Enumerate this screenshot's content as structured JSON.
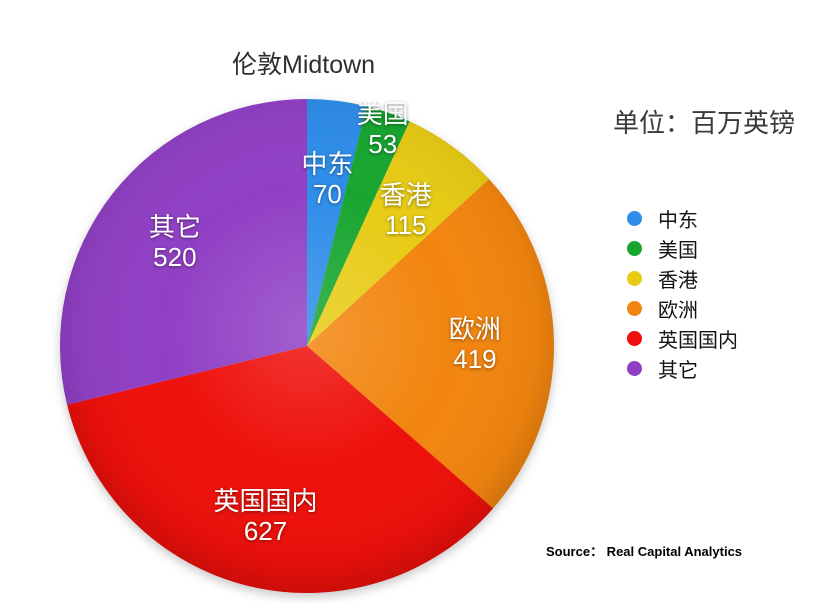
{
  "title": "伦敦Midtown",
  "unit_label": "单位：百万英镑",
  "source_label": "Source： Real Capital Analytics",
  "chart_data": {
    "type": "pie",
    "title": "伦敦Midtown",
    "unit": "百万英镑",
    "start_angle_deg": 0,
    "direction": "clockwise",
    "legend_position": "right",
    "labels_on_slices": true,
    "slices": [
      {
        "name": "中东",
        "value": 70,
        "color": "#2E8DE9",
        "label_r": 0.68
      },
      {
        "name": "美国",
        "value": 53,
        "color": "#18A630",
        "label_r": 0.93
      },
      {
        "name": "香港",
        "value": 115,
        "color": "#E7CB15",
        "label_r": 0.68
      },
      {
        "name": "欧洲",
        "value": 419,
        "color": "#F2850F",
        "label_r": 0.68
      },
      {
        "name": "英国国内",
        "value": 627,
        "color": "#EE100B",
        "label_r": 0.71
      },
      {
        "name": "其它",
        "value": 520,
        "color": "#9040C4",
        "label_r": 0.68
      }
    ]
  }
}
